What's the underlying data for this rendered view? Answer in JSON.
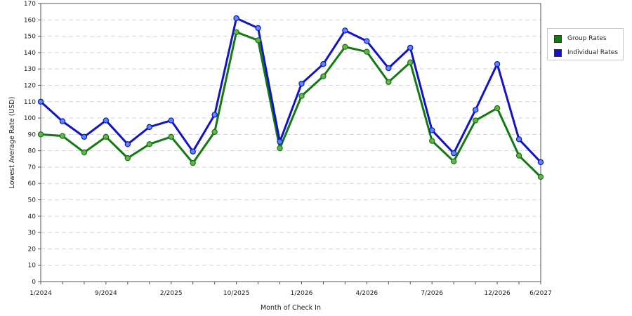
{
  "chart_data": {
    "type": "line",
    "xlabel": "Month of Check In",
    "ylabel": "Lowest Average Rate (USD)",
    "ylim": [
      0,
      170
    ],
    "ytick_step": 10,
    "grid": "horizontal dashed",
    "legend_position": "top-right",
    "x_tick_labels": [
      {
        "index": 0,
        "label": "1/2024"
      },
      {
        "index": 3,
        "label": "9/2024"
      },
      {
        "index": 6,
        "label": "2/2025"
      },
      {
        "index": 9,
        "label": "10/2025"
      },
      {
        "index": 12,
        "label": "1/2026"
      },
      {
        "index": 15,
        "label": "4/2026"
      },
      {
        "index": 18,
        "label": "7/2026"
      },
      {
        "index": 21,
        "label": "12/2026"
      },
      {
        "index": 23,
        "label": "6/2027"
      }
    ],
    "series": [
      {
        "name": "Group Rates",
        "color": "#117a11",
        "marker_color": "#6ab04c",
        "values": [
          90,
          89,
          79,
          88.5,
          75.5,
          84,
          88.5,
          72.5,
          91.5,
          152.5,
          147.5,
          81.5,
          113.5,
          125.5,
          143.5,
          140.5,
          122,
          134,
          86,
          73.5,
          98.5,
          106,
          77,
          64
        ]
      },
      {
        "name": "Individual Rates",
        "color": "#1212cc",
        "marker_color": "#5a8cf0",
        "values": [
          110,
          98,
          88.5,
          98.5,
          84,
          94.5,
          98.5,
          79.5,
          102,
          161,
          155,
          85.5,
          121,
          133,
          153.5,
          147,
          130.5,
          143,
          92.5,
          78.5,
          105,
          133,
          87,
          73
        ]
      }
    ]
  }
}
